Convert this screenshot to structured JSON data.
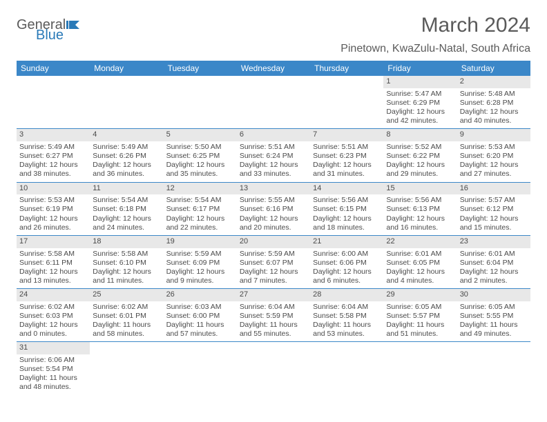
{
  "logo": {
    "general": "General",
    "blue": "Blue"
  },
  "title": "March 2024",
  "location": "Pinetown, KwaZulu-Natal, South Africa",
  "colors": {
    "header_bg": "#3b87c8",
    "header_text": "#ffffff",
    "daynum_bg": "#e8e8e8",
    "text": "#4a4a4a",
    "logo_gray": "#5a5a5a",
    "logo_blue": "#2a7ab8",
    "row_border": "#3b87c8"
  },
  "dayNames": [
    "Sunday",
    "Monday",
    "Tuesday",
    "Wednesday",
    "Thursday",
    "Friday",
    "Saturday"
  ],
  "weeks": [
    [
      null,
      null,
      null,
      null,
      null,
      {
        "n": "1",
        "sr": "Sunrise: 5:47 AM",
        "ss": "Sunset: 6:29 PM",
        "d1": "Daylight: 12 hours",
        "d2": "and 42 minutes."
      },
      {
        "n": "2",
        "sr": "Sunrise: 5:48 AM",
        "ss": "Sunset: 6:28 PM",
        "d1": "Daylight: 12 hours",
        "d2": "and 40 minutes."
      }
    ],
    [
      {
        "n": "3",
        "sr": "Sunrise: 5:49 AM",
        "ss": "Sunset: 6:27 PM",
        "d1": "Daylight: 12 hours",
        "d2": "and 38 minutes."
      },
      {
        "n": "4",
        "sr": "Sunrise: 5:49 AM",
        "ss": "Sunset: 6:26 PM",
        "d1": "Daylight: 12 hours",
        "d2": "and 36 minutes."
      },
      {
        "n": "5",
        "sr": "Sunrise: 5:50 AM",
        "ss": "Sunset: 6:25 PM",
        "d1": "Daylight: 12 hours",
        "d2": "and 35 minutes."
      },
      {
        "n": "6",
        "sr": "Sunrise: 5:51 AM",
        "ss": "Sunset: 6:24 PM",
        "d1": "Daylight: 12 hours",
        "d2": "and 33 minutes."
      },
      {
        "n": "7",
        "sr": "Sunrise: 5:51 AM",
        "ss": "Sunset: 6:23 PM",
        "d1": "Daylight: 12 hours",
        "d2": "and 31 minutes."
      },
      {
        "n": "8",
        "sr": "Sunrise: 5:52 AM",
        "ss": "Sunset: 6:22 PM",
        "d1": "Daylight: 12 hours",
        "d2": "and 29 minutes."
      },
      {
        "n": "9",
        "sr": "Sunrise: 5:53 AM",
        "ss": "Sunset: 6:20 PM",
        "d1": "Daylight: 12 hours",
        "d2": "and 27 minutes."
      }
    ],
    [
      {
        "n": "10",
        "sr": "Sunrise: 5:53 AM",
        "ss": "Sunset: 6:19 PM",
        "d1": "Daylight: 12 hours",
        "d2": "and 26 minutes."
      },
      {
        "n": "11",
        "sr": "Sunrise: 5:54 AM",
        "ss": "Sunset: 6:18 PM",
        "d1": "Daylight: 12 hours",
        "d2": "and 24 minutes."
      },
      {
        "n": "12",
        "sr": "Sunrise: 5:54 AM",
        "ss": "Sunset: 6:17 PM",
        "d1": "Daylight: 12 hours",
        "d2": "and 22 minutes."
      },
      {
        "n": "13",
        "sr": "Sunrise: 5:55 AM",
        "ss": "Sunset: 6:16 PM",
        "d1": "Daylight: 12 hours",
        "d2": "and 20 minutes."
      },
      {
        "n": "14",
        "sr": "Sunrise: 5:56 AM",
        "ss": "Sunset: 6:15 PM",
        "d1": "Daylight: 12 hours",
        "d2": "and 18 minutes."
      },
      {
        "n": "15",
        "sr": "Sunrise: 5:56 AM",
        "ss": "Sunset: 6:13 PM",
        "d1": "Daylight: 12 hours",
        "d2": "and 16 minutes."
      },
      {
        "n": "16",
        "sr": "Sunrise: 5:57 AM",
        "ss": "Sunset: 6:12 PM",
        "d1": "Daylight: 12 hours",
        "d2": "and 15 minutes."
      }
    ],
    [
      {
        "n": "17",
        "sr": "Sunrise: 5:58 AM",
        "ss": "Sunset: 6:11 PM",
        "d1": "Daylight: 12 hours",
        "d2": "and 13 minutes."
      },
      {
        "n": "18",
        "sr": "Sunrise: 5:58 AM",
        "ss": "Sunset: 6:10 PM",
        "d1": "Daylight: 12 hours",
        "d2": "and 11 minutes."
      },
      {
        "n": "19",
        "sr": "Sunrise: 5:59 AM",
        "ss": "Sunset: 6:09 PM",
        "d1": "Daylight: 12 hours",
        "d2": "and 9 minutes."
      },
      {
        "n": "20",
        "sr": "Sunrise: 5:59 AM",
        "ss": "Sunset: 6:07 PM",
        "d1": "Daylight: 12 hours",
        "d2": "and 7 minutes."
      },
      {
        "n": "21",
        "sr": "Sunrise: 6:00 AM",
        "ss": "Sunset: 6:06 PM",
        "d1": "Daylight: 12 hours",
        "d2": "and 6 minutes."
      },
      {
        "n": "22",
        "sr": "Sunrise: 6:01 AM",
        "ss": "Sunset: 6:05 PM",
        "d1": "Daylight: 12 hours",
        "d2": "and 4 minutes."
      },
      {
        "n": "23",
        "sr": "Sunrise: 6:01 AM",
        "ss": "Sunset: 6:04 PM",
        "d1": "Daylight: 12 hours",
        "d2": "and 2 minutes."
      }
    ],
    [
      {
        "n": "24",
        "sr": "Sunrise: 6:02 AM",
        "ss": "Sunset: 6:03 PM",
        "d1": "Daylight: 12 hours",
        "d2": "and 0 minutes."
      },
      {
        "n": "25",
        "sr": "Sunrise: 6:02 AM",
        "ss": "Sunset: 6:01 PM",
        "d1": "Daylight: 11 hours",
        "d2": "and 58 minutes."
      },
      {
        "n": "26",
        "sr": "Sunrise: 6:03 AM",
        "ss": "Sunset: 6:00 PM",
        "d1": "Daylight: 11 hours",
        "d2": "and 57 minutes."
      },
      {
        "n": "27",
        "sr": "Sunrise: 6:04 AM",
        "ss": "Sunset: 5:59 PM",
        "d1": "Daylight: 11 hours",
        "d2": "and 55 minutes."
      },
      {
        "n": "28",
        "sr": "Sunrise: 6:04 AM",
        "ss": "Sunset: 5:58 PM",
        "d1": "Daylight: 11 hours",
        "d2": "and 53 minutes."
      },
      {
        "n": "29",
        "sr": "Sunrise: 6:05 AM",
        "ss": "Sunset: 5:57 PM",
        "d1": "Daylight: 11 hours",
        "d2": "and 51 minutes."
      },
      {
        "n": "30",
        "sr": "Sunrise: 6:05 AM",
        "ss": "Sunset: 5:55 PM",
        "d1": "Daylight: 11 hours",
        "d2": "and 49 minutes."
      }
    ],
    [
      {
        "n": "31",
        "sr": "Sunrise: 6:06 AM",
        "ss": "Sunset: 5:54 PM",
        "d1": "Daylight: 11 hours",
        "d2": "and 48 minutes."
      },
      null,
      null,
      null,
      null,
      null,
      null
    ]
  ]
}
